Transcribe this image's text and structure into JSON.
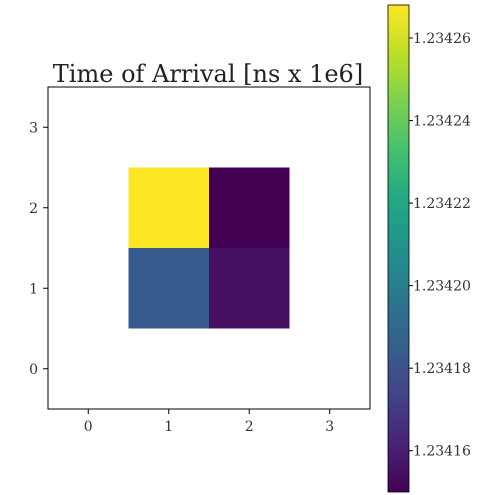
{
  "chart_data": {
    "type": "heatmap",
    "title": "Time of Arrival [ns x 1e6]",
    "xlabel": "",
    "ylabel": "",
    "xlim": [
      -0.5,
      3.5
    ],
    "ylim": [
      -0.5,
      3.5
    ],
    "x_ticks": [
      0,
      1,
      2,
      3
    ],
    "y_ticks": [
      0,
      1,
      2,
      3
    ],
    "x_tick_labels": [
      "0",
      "1",
      "2",
      "3"
    ],
    "y_tick_labels": [
      "0",
      "1",
      "2",
      "3"
    ],
    "cells": [
      {
        "x": 1,
        "y": 2,
        "value": 1.234268
      },
      {
        "x": 2,
        "y": 2,
        "value": 1.23415
      },
      {
        "x": 1,
        "y": 1,
        "value": 1.234183
      },
      {
        "x": 2,
        "y": 1,
        "value": 1.234155
      }
    ],
    "colorbar": {
      "colormap": "viridis",
      "vmin": 1.23415,
      "vmax": 1.234268,
      "ticks": [
        1.23416,
        1.23418,
        1.2342,
        1.23422,
        1.23424,
        1.23426
      ],
      "tick_labels": [
        "1.23416",
        "1.23418",
        "1.23420",
        "1.23422",
        "1.23424",
        "1.23426"
      ],
      "placement": "right"
    },
    "grid": false
  }
}
